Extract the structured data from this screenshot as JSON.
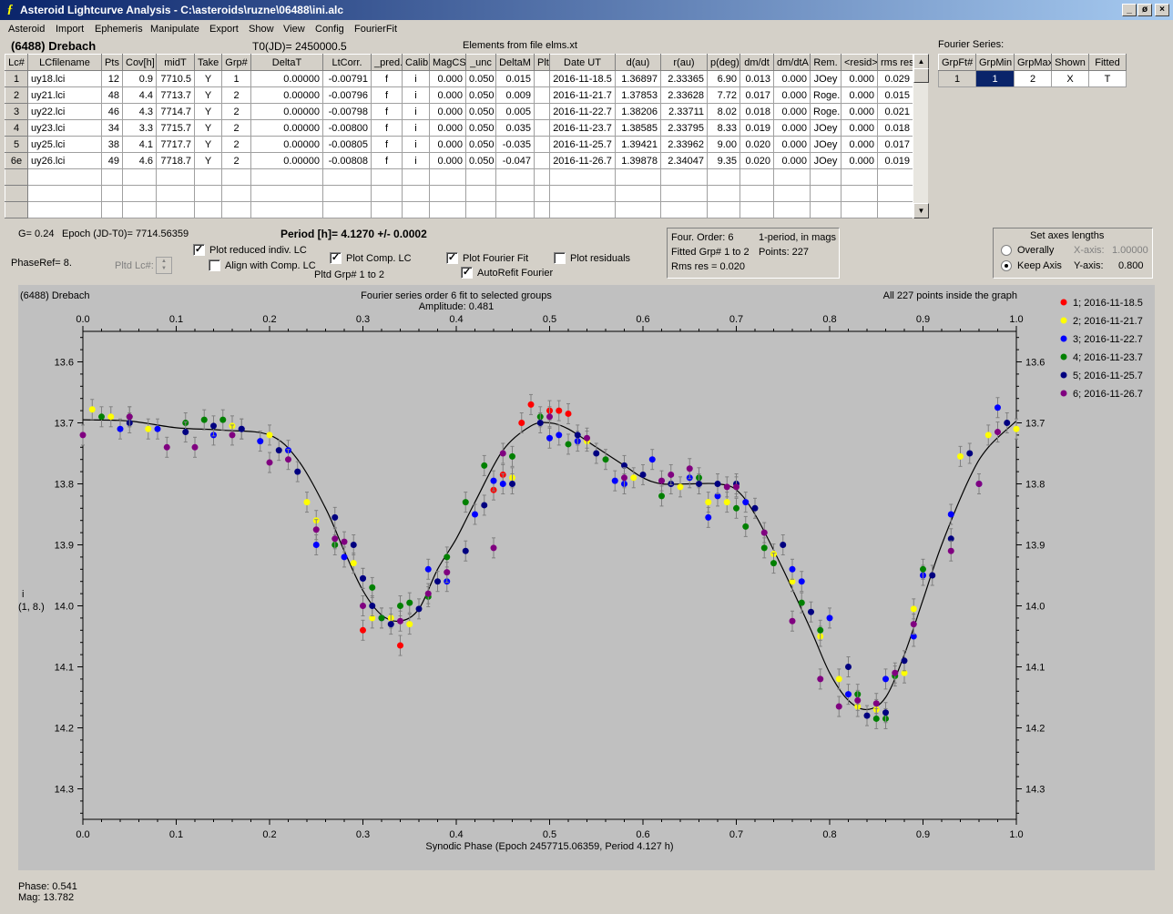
{
  "window": {
    "title": "Asteroid Lightcurve Analysis - C:\\asteroids\\ruzne\\06488\\ini.alc",
    "app_icon": "ALC app icon",
    "min_label": "_",
    "restore_label": "ø",
    "close_label": "×"
  },
  "menu": [
    "Asteroid",
    "Import",
    "Ephemeris",
    "Manipulate",
    "Export",
    "Show",
    "View",
    "Config",
    "FourierFit"
  ],
  "header": {
    "asteroid": "(6488) Drebach",
    "t0": "T0(JD)= 2450000.5",
    "elements": "Elements from file elms.xt"
  },
  "table": {
    "columns": [
      "Lc#",
      "LCfilename",
      "Pts",
      "Cov[h]",
      "midT",
      "Take",
      "Grp#",
      "DeltaT",
      "LtCorr.",
      "_pred.",
      "Calib",
      "MagCS",
      "_unc",
      "DeltaM",
      "Plt",
      "Date UT",
      "d(au)",
      "r(au)",
      "p(deg)",
      "dm/dt",
      "dm/dtA",
      "Rem.",
      "<resid>",
      "rms res"
    ],
    "rows": [
      [
        "1",
        "uy18.lci",
        "12",
        "0.9",
        "7710.5",
        "Y",
        "1",
        "0.00000",
        "-0.00791",
        "f",
        "i",
        "0.000",
        "0.050",
        "0.015",
        "",
        "2016-11-18.5",
        "1.36897",
        "2.33365",
        "6.90",
        "0.013",
        "0.000",
        "JOey",
        "0.000",
        "0.029"
      ],
      [
        "2",
        "uy21.lci",
        "48",
        "4.4",
        "7713.7",
        "Y",
        "2",
        "0.00000",
        "-0.00796",
        "f",
        "i",
        "0.000",
        "0.050",
        "0.009",
        "",
        "2016-11-21.7",
        "1.37853",
        "2.33628",
        "7.72",
        "0.017",
        "0.000",
        "Roge..",
        "0.000",
        "0.015"
      ],
      [
        "3",
        "uy22.lci",
        "46",
        "4.3",
        "7714.7",
        "Y",
        "2",
        "0.00000",
        "-0.00798",
        "f",
        "i",
        "0.000",
        "0.050",
        "0.005",
        "",
        "2016-11-22.7",
        "1.38206",
        "2.33711",
        "8.02",
        "0.018",
        "0.000",
        "Roge..",
        "0.000",
        "0.021"
      ],
      [
        "4",
        "uy23.lci",
        "34",
        "3.3",
        "7715.7",
        "Y",
        "2",
        "0.00000",
        "-0.00800",
        "f",
        "i",
        "0.000",
        "0.050",
        "0.035",
        "",
        "2016-11-23.7",
        "1.38585",
        "2.33795",
        "8.33",
        "0.019",
        "0.000",
        "JOey",
        "0.000",
        "0.018"
      ],
      [
        "5",
        "uy25.lci",
        "38",
        "4.1",
        "7717.7",
        "Y",
        "2",
        "0.00000",
        "-0.00805",
        "f",
        "i",
        "0.000",
        "0.050",
        "-0.035",
        "",
        "2016-11-25.7",
        "1.39421",
        "2.33962",
        "9.00",
        "0.020",
        "0.000",
        "JOey",
        "0.000",
        "0.017"
      ],
      [
        "6e",
        "uy26.lci",
        "49",
        "4.6",
        "7718.7",
        "Y",
        "2",
        "0.00000",
        "-0.00808",
        "f",
        "i",
        "0.000",
        "0.050",
        "-0.047",
        "",
        "2016-11-26.7",
        "1.39878",
        "2.34047",
        "9.35",
        "0.020",
        "0.000",
        "JOey",
        "0.000",
        "0.019"
      ]
    ]
  },
  "fourier_series": {
    "title": "Fourier Series:",
    "columns": [
      "GrpFt#",
      "GrpMin",
      "GrpMax",
      "Shown",
      "Fitted"
    ],
    "row": [
      "1",
      "1",
      "2",
      "X",
      "T"
    ]
  },
  "controls": {
    "g": "G= 0.24",
    "epoch": "Epoch (JD-T0)= 7714.56359",
    "period": "Period [h]= 4.1270 +/- 0.0002",
    "phaseref": "PhaseRef= 8.",
    "pltd_lc": "Pltd Lc#:",
    "plot_reduced": "Plot reduced indiv. LC",
    "align_comp": "Align with Comp. LC",
    "plot_comp": "Plot Comp. LC",
    "pltd_grp": "Pltd Grp#  1   to   2",
    "plot_fourier": "Plot Fourier Fit",
    "autorefit": "AutoRefit Fourier",
    "plot_residuals": "Plot residuals",
    "checks": {
      "plot_reduced": true,
      "align_comp": false,
      "plot_comp": true,
      "plot_fourier": true,
      "autorefit": true,
      "plot_residuals": false
    }
  },
  "info": {
    "four_order": "Four. Order:  6",
    "one_period": "1-period,  in mags",
    "fitted_grp": "Fitted Grp# 1 to 2",
    "points": "Points: 227",
    "rms": "Rms res      = 0.020"
  },
  "axes": {
    "title": "Set axes lengths",
    "overally": "Overally",
    "keep_axis": "Keep Axis",
    "x_axis_label": "X-axis:",
    "x_axis_val": "1.00000",
    "y_axis_label": "Y-axis:",
    "y_axis_val": "0.800"
  },
  "chart_data": {
    "type": "scatter",
    "title": "Fourier series order 6 fit to selected groups",
    "subtitle": "Amplitude: 0.481",
    "corner_left": "(6488) Drebach",
    "corner_right": "All 227 points inside the graph",
    "xlabel": "Synodic Phase (Epoch 2457715.06359, Period 4.127 h)",
    "ylabel": "i",
    "ylabel2": "(1, 8.)",
    "xlim": [
      0,
      1
    ],
    "ylim": [
      13.55,
      14.35
    ],
    "y_inverted": true,
    "xticks": [
      "0.0",
      "0.1",
      "0.2",
      "0.3",
      "0.4",
      "0.5",
      "0.6",
      "0.7",
      "0.8",
      "0.9",
      "1.0"
    ],
    "yticks": [
      "13.6",
      "13.7",
      "13.8",
      "13.9",
      "14.0",
      "14.1",
      "14.2",
      "14.3"
    ],
    "fit_curve": {
      "x": [
        0,
        0.05,
        0.1,
        0.15,
        0.2,
        0.23,
        0.26,
        0.28,
        0.3,
        0.32,
        0.34,
        0.36,
        0.38,
        0.4,
        0.42,
        0.45,
        0.48,
        0.5,
        0.52,
        0.55,
        0.58,
        0.6,
        0.62,
        0.65,
        0.68,
        0.7,
        0.72,
        0.75,
        0.78,
        0.8,
        0.82,
        0.84,
        0.86,
        0.88,
        0.9,
        0.92,
        0.95,
        0.97,
        1.0
      ],
      "y": [
        13.695,
        13.697,
        13.708,
        13.712,
        13.72,
        13.76,
        13.84,
        13.91,
        13.975,
        14.015,
        14.025,
        14.005,
        13.94,
        13.89,
        13.83,
        13.745,
        13.705,
        13.7,
        13.71,
        13.74,
        13.77,
        13.79,
        13.8,
        13.8,
        13.8,
        13.81,
        13.85,
        13.94,
        14.04,
        14.11,
        14.155,
        14.17,
        14.15,
        14.08,
        13.99,
        13.9,
        13.79,
        13.74,
        13.697
      ]
    },
    "series": [
      {
        "name": "1; 2016-11-18.5",
        "color": "#ff0000",
        "x": [
          0.3,
          0.34,
          0.44,
          0.45,
          0.47,
          0.48,
          0.5,
          0.51,
          0.52
        ],
        "y": [
          14.04,
          14.065,
          13.81,
          13.785,
          13.7,
          13.67,
          13.68,
          13.68,
          13.685
        ]
      },
      {
        "name": "2; 2016-11-21.7",
        "color": "#ffff00",
        "x": [
          0.01,
          0.03,
          0.07,
          0.16,
          0.2,
          0.24,
          0.25,
          0.29,
          0.31,
          0.33,
          0.35,
          0.46,
          0.54,
          0.59,
          0.64,
          0.67,
          0.69,
          0.74,
          0.76,
          0.79,
          0.81,
          0.83,
          0.85,
          0.88,
          0.89,
          0.94,
          0.97,
          1.0
        ],
        "y": [
          13.678,
          13.69,
          13.71,
          13.705,
          13.72,
          13.83,
          13.86,
          13.93,
          14.02,
          14.02,
          14.03,
          13.79,
          13.73,
          13.79,
          13.805,
          13.83,
          13.83,
          13.915,
          13.96,
          14.05,
          14.12,
          14.165,
          14.17,
          14.11,
          14.005,
          13.755,
          13.72,
          13.71
        ]
      },
      {
        "name": "3; 2016-11-22.7",
        "color": "#0000ff",
        "x": [
          0.04,
          0.08,
          0.14,
          0.17,
          0.19,
          0.22,
          0.25,
          0.28,
          0.3,
          0.32,
          0.37,
          0.39,
          0.42,
          0.44,
          0.45,
          0.5,
          0.51,
          0.53,
          0.57,
          0.58,
          0.61,
          0.65,
          0.67,
          0.68,
          0.71,
          0.76,
          0.77,
          0.8,
          0.82,
          0.86,
          0.89,
          0.9,
          0.93,
          0.96,
          0.98
        ],
        "y": [
          13.71,
          13.71,
          13.72,
          13.71,
          13.73,
          13.745,
          13.9,
          13.92,
          13.955,
          14.02,
          13.94,
          13.96,
          13.85,
          13.795,
          13.8,
          13.725,
          13.72,
          13.73,
          13.795,
          13.8,
          13.76,
          13.79,
          13.855,
          13.82,
          13.83,
          13.94,
          13.96,
          14.02,
          14.145,
          14.12,
          14.05,
          13.95,
          13.85,
          13.8,
          13.675
        ]
      },
      {
        "name": "4; 2016-11-23.7",
        "color": "#008000",
        "x": [
          0.02,
          0.05,
          0.11,
          0.13,
          0.15,
          0.27,
          0.31,
          0.32,
          0.34,
          0.35,
          0.37,
          0.39,
          0.41,
          0.43,
          0.46,
          0.49,
          0.52,
          0.56,
          0.62,
          0.66,
          0.7,
          0.71,
          0.73,
          0.74,
          0.77,
          0.79,
          0.83,
          0.85,
          0.86,
          0.87,
          0.9
        ],
        "y": [
          13.69,
          13.69,
          13.7,
          13.695,
          13.695,
          13.9,
          13.97,
          14.02,
          14.0,
          13.995,
          13.985,
          13.92,
          13.83,
          13.77,
          13.755,
          13.69,
          13.735,
          13.76,
          13.82,
          13.79,
          13.84,
          13.87,
          13.905,
          13.93,
          13.995,
          14.04,
          14.145,
          14.185,
          14.185,
          14.115,
          13.94
        ]
      },
      {
        "name": "5; 2016-11-25.7",
        "color": "#000080",
        "x": [
          0.05,
          0.11,
          0.14,
          0.17,
          0.21,
          0.23,
          0.27,
          0.29,
          0.3,
          0.31,
          0.33,
          0.36,
          0.38,
          0.41,
          0.43,
          0.46,
          0.49,
          0.53,
          0.55,
          0.58,
          0.6,
          0.63,
          0.66,
          0.68,
          0.7,
          0.72,
          0.75,
          0.78,
          0.82,
          0.84,
          0.86,
          0.88,
          0.91,
          0.93,
          0.95,
          0.99
        ],
        "y": [
          13.7,
          13.715,
          13.705,
          13.71,
          13.745,
          13.78,
          13.855,
          13.9,
          13.955,
          14.0,
          14.03,
          14.005,
          13.96,
          13.91,
          13.835,
          13.8,
          13.7,
          13.72,
          13.75,
          13.77,
          13.785,
          13.8,
          13.8,
          13.8,
          13.8,
          13.84,
          13.9,
          14.01,
          14.1,
          14.18,
          14.175,
          14.09,
          13.95,
          13.89,
          13.75,
          13.7
        ]
      },
      {
        "name": "6; 2016-11-26.7",
        "color": "#800080",
        "x": [
          0.0,
          0.05,
          0.09,
          0.12,
          0.16,
          0.2,
          0.22,
          0.25,
          0.27,
          0.28,
          0.3,
          0.34,
          0.37,
          0.39,
          0.44,
          0.45,
          0.5,
          0.54,
          0.58,
          0.62,
          0.63,
          0.65,
          0.69,
          0.7,
          0.73,
          0.76,
          0.79,
          0.81,
          0.83,
          0.85,
          0.87,
          0.89,
          0.93,
          0.96,
          0.98
        ],
        "y": [
          13.72,
          13.69,
          13.74,
          13.74,
          13.72,
          13.765,
          13.76,
          13.875,
          13.89,
          13.895,
          14.0,
          14.025,
          13.98,
          13.945,
          13.905,
          13.75,
          13.69,
          13.725,
          13.79,
          13.795,
          13.785,
          13.775,
          13.805,
          13.805,
          13.88,
          14.025,
          14.12,
          14.165,
          14.155,
          14.16,
          14.11,
          14.03,
          13.91,
          13.8,
          13.715
        ]
      }
    ]
  },
  "status": {
    "phase": "Phase:  0.541",
    "mag": "Mag:   13.782"
  }
}
